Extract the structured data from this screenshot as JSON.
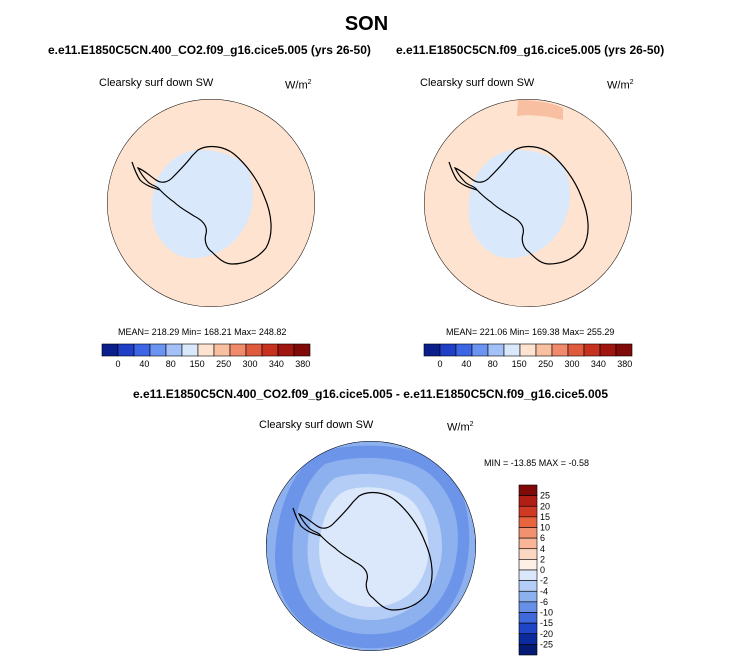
{
  "title": "SON",
  "panels": [
    {
      "case": "e.e11.E1850C5CN.400_CO2.f09_g16.cice5.005 (yrs 26-50)",
      "variable": "Clearsky surf down SW",
      "units_base": "W/m",
      "units_exp": "2",
      "stats": "MEAN= 218.29  Min= 168.21  Max= 248.82"
    },
    {
      "case": "e.e11.E1850C5CN.f09_g16.cice5.005 (yrs 26-50)",
      "variable": "Clearsky surf down SW",
      "units_base": "W/m",
      "units_exp": "2",
      "stats": "MEAN= 221.06  Min= 169.38  Max= 255.29"
    }
  ],
  "diff_panel": {
    "case": "e.e11.E1850C5CN.400_CO2.f09_g16.cice5.005 - e.e11.E1850C5CN.f09_g16.cice5.005",
    "variable": "Clearsky surf down SW",
    "units_base": "W/m",
    "units_exp": "2",
    "stats": "MIN = -13.85 MAX =  -0.58"
  },
  "colorbar_horizontal": {
    "labels": [
      "0",
      "40",
      "80",
      "150",
      "250",
      "300",
      "340",
      "380"
    ],
    "colors": [
      "#0a1e8c",
      "#1f3fc7",
      "#3d66e6",
      "#6b93f2",
      "#a3c1f7",
      "#d9e8fb",
      "#fde3d0",
      "#f8c0a0",
      "#f08a6a",
      "#e05a3e",
      "#c73220",
      "#a11510",
      "#800a08"
    ]
  },
  "colorbar_vertical": {
    "labels": [
      "25",
      "20",
      "15",
      "10",
      "6",
      "4",
      "2",
      "0",
      "-2",
      "-4",
      "-6",
      "-10",
      "-15",
      "-20",
      "-25"
    ],
    "colors": [
      "#800a08",
      "#b01e14",
      "#d03a24",
      "#e8643e",
      "#f39070",
      "#f8b598",
      "#fbd6c2",
      "#fef0e6",
      "#dbe8fb",
      "#b4cdf6",
      "#8db0ef",
      "#6690e8",
      "#3f69dd",
      "#1e46c7",
      "#0a2a9e",
      "#061a73"
    ]
  }
}
